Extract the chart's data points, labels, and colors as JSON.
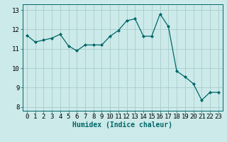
{
  "x": [
    0,
    1,
    2,
    3,
    4,
    5,
    6,
    7,
    8,
    9,
    10,
    11,
    12,
    13,
    14,
    15,
    16,
    17,
    18,
    19,
    20,
    21,
    22,
    23
  ],
  "y": [
    11.7,
    11.35,
    11.45,
    11.55,
    11.75,
    11.15,
    10.9,
    11.2,
    11.2,
    11.2,
    11.65,
    11.95,
    12.45,
    12.55,
    11.65,
    11.65,
    12.8,
    12.15,
    9.85,
    9.55,
    9.2,
    8.35,
    8.75,
    8.75
  ],
  "line_color": "#006666",
  "marker": "D",
  "marker_size": 2.0,
  "linewidth": 0.9,
  "bg_color": "#cceaea",
  "grid_color": "#aacccc",
  "xlabel": "Humidex (Indice chaleur)",
  "xlabel_fontsize": 7,
  "xlim": [
    -0.5,
    23.5
  ],
  "ylim": [
    7.8,
    13.3
  ],
  "yticks": [
    8,
    9,
    10,
    11,
    12,
    13
  ],
  "xticks": [
    0,
    1,
    2,
    3,
    4,
    5,
    6,
    7,
    8,
    9,
    10,
    11,
    12,
    13,
    14,
    15,
    16,
    17,
    18,
    19,
    20,
    21,
    22,
    23
  ],
  "tick_fontsize": 6.5
}
